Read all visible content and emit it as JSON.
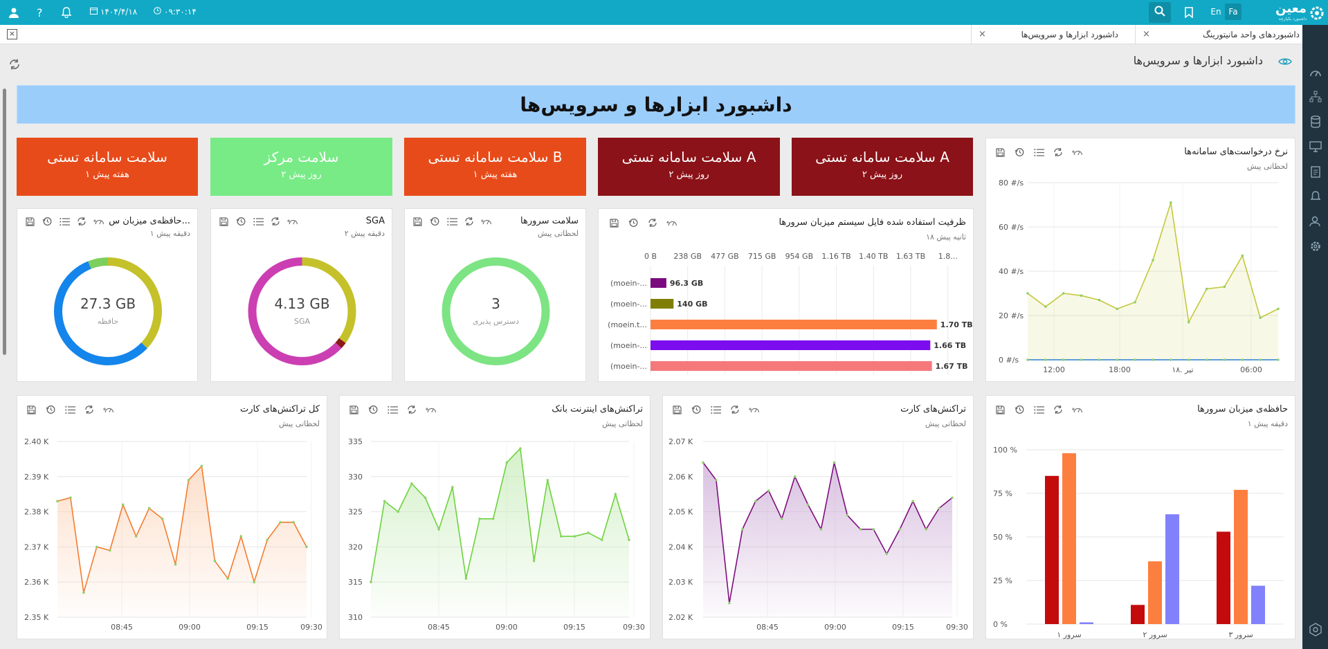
{
  "topbar": {
    "brand": "معین",
    "brand_sub": "داشبورد یکپارچه",
    "lang_en": "En",
    "lang_fa": "Fa",
    "date": "۱۴۰۴/۴/۱۸",
    "time": "۰۹:۳۰:۱۴",
    "icons": [
      "user-icon",
      "help-icon",
      "bell-icon",
      "calendar-icon",
      "clock-icon",
      "search-icon",
      "bookmark-icon"
    ]
  },
  "tabs": [
    {
      "label": "داشبوردهای واحد مانیتورینگ"
    },
    {
      "label": "داشبورد ابزارها و سرویس‌ها"
    }
  ],
  "page": {
    "title": "داشبورد ابزارها و سرویس‌ها",
    "banner": "داشبورد ابزارها و سرویس‌ها"
  },
  "status_cards": [
    {
      "title": "سلامت سامانه تستی A",
      "sub": "۲ روز پیش",
      "color": "#8b1218"
    },
    {
      "title": "سلامت سامانه تستی A",
      "sub": "۲ روز پیش",
      "color": "#8b1218"
    },
    {
      "title": "سلامت سامانه تستی B",
      "sub": "۱ هفته پیش",
      "color": "#e84b1a"
    },
    {
      "title": "سلامت مرکز",
      "sub": "۲ روز پیش",
      "color": "#78eb86"
    },
    {
      "title": "سلامت سامانه تستی",
      "sub": "۱ هفته پیش",
      "color": "#e84b1a"
    }
  ],
  "panels": {
    "requests": {
      "title": "نرخ درخواست‌های سامانه‌ها",
      "sub": "لحظاتی پیش"
    },
    "fs": {
      "title": "ظرفیت استفاده شده فایل سیستم میزبان سرورها",
      "sub": "۱۸ ثانیه پیش"
    },
    "health": {
      "title": "سلامت سرورها",
      "sub": "لحظاتی پیش",
      "value": "3",
      "label": "دسترس پذیری"
    },
    "sga": {
      "title": "SGA",
      "sub": "۲ دقیقه پیش",
      "value": "4.13 GB",
      "label": "SGA"
    },
    "memory": {
      "title": "حافظه‌ی میزبان س...",
      "sub": "۱ دقیقه پیش",
      "value": "27.3 GB",
      "label": "حافظه"
    },
    "srvmem": {
      "title": "حافظه‌ی میزبان سرورها",
      "sub": "۱ دقیقه پیش"
    },
    "card_tx": {
      "title": "تراکنش‌های کارت",
      "sub": "لحظاتی پیش"
    },
    "bank_tx": {
      "title": "تراکنش‌های اینترنت بانک",
      "sub": "لحظاتی پیش"
    },
    "total_tx": {
      "title": "کل تراکنش‌های کارت",
      "sub": "لحظاتی پیش"
    }
  },
  "chart_data": [
    {
      "type": "line",
      "name": "requests",
      "y_ticks": [
        "80 #/s",
        "60 #/s",
        "40 #/s",
        "20 #/s",
        "0 #/s"
      ],
      "ylim": [
        0,
        80
      ],
      "x_ticks": [
        "12:00",
        "18:00",
        "۱۸. تیر",
        "06:00"
      ],
      "series": [
        {
          "color": "#c3c93a",
          "values": [
            30,
            24,
            30,
            29,
            27,
            23,
            26,
            45,
            71,
            17,
            32,
            33,
            47,
            19,
            23
          ]
        },
        {
          "color": "#2a7fd4",
          "values": [
            0,
            0,
            0,
            0,
            0,
            0,
            0,
            0,
            0,
            0,
            0,
            0,
            0,
            0,
            0
          ]
        }
      ]
    },
    {
      "type": "bar",
      "name": "fs",
      "orientation": "horizontal",
      "x_ticks": [
        "0 B",
        "238 GB",
        "477 GB",
        "715 GB",
        "954 GB",
        "1.16 TB",
        "1.40 TB",
        "1.63 TB",
        "1.8..."
      ],
      "xmax_gb": 1900,
      "categories": [
        "(moein-...",
        "(moein-...",
        "(moein.t...",
        "(moein-...",
        "(moein-..."
      ],
      "values_gb": [
        96.3,
        140,
        1740,
        1700,
        1710
      ],
      "labels": [
        "96.3 GB",
        "140 GB",
        "1.70 TB",
        "1.66 TB",
        "1.67 TB"
      ],
      "colors": [
        "#7b0a7f",
        "#7f7f06",
        "#fd7f40",
        "#7c0dee",
        "#f5787b"
      ]
    },
    {
      "type": "pie",
      "name": "health",
      "slices": [
        {
          "value": 100,
          "color": "#7de483"
        }
      ]
    },
    {
      "type": "pie",
      "name": "sga",
      "slices": [
        {
          "value": 35,
          "color": "#c5c12a"
        },
        {
          "value": 2,
          "color": "#8b1a1a"
        },
        {
          "value": 63,
          "color": "#cb3fb2"
        }
      ]
    },
    {
      "type": "pie",
      "name": "memory",
      "slices": [
        {
          "value": 37,
          "color": "#c5c12a"
        },
        {
          "value": 57,
          "color": "#1485ea"
        },
        {
          "value": 6,
          "color": "#7ccf5d"
        }
      ]
    },
    {
      "type": "bar",
      "name": "srvmem",
      "categories": [
        "سرور ۱",
        "سرور ۲",
        "سرور ۳"
      ],
      "y_ticks": [
        "100 %",
        "75 %",
        "50 %",
        "25 %",
        "0 %"
      ],
      "ylim": [
        0,
        100
      ],
      "series": [
        {
          "color": "#c40b0b",
          "values": [
            85,
            11,
            53
          ]
        },
        {
          "color": "#fd7f40",
          "values": [
            98,
            36,
            77
          ]
        },
        {
          "color": "#8181fb",
          "values": [
            1,
            63,
            22
          ]
        }
      ]
    },
    {
      "type": "line",
      "name": "card_tx",
      "y_ticks": [
        "2.07 K",
        "2.06 K",
        "2.05 K",
        "2.04 K",
        "2.03 K",
        "2.02 K"
      ],
      "ylim": [
        2020,
        2070
      ],
      "x_ticks": [
        "08:45",
        "09:00",
        "09:15",
        "09:30"
      ],
      "series": [
        {
          "color": "#7d0e7c",
          "fill": "#c9a7d3",
          "values": [
            2064,
            2059,
            2024,
            2045,
            2053,
            2056,
            2048,
            2060,
            2052,
            2045,
            2064,
            2049,
            2045,
            2045,
            2038,
            2045,
            2053,
            2045,
            2051,
            2054
          ]
        }
      ]
    },
    {
      "type": "line",
      "name": "bank_tx",
      "y_ticks": [
        "335",
        "330",
        "325",
        "320",
        "315",
        "310"
      ],
      "ylim": [
        310,
        335
      ],
      "x_ticks": [
        "08:45",
        "09:00",
        "09:15",
        "09:30"
      ],
      "series": [
        {
          "color": "#6cd23c",
          "fill": "#c3ebb4",
          "values": [
            315,
            326.5,
            325,
            329,
            327,
            322.5,
            328.5,
            315.5,
            324,
            324,
            332,
            334,
            318,
            329.5,
            321.5,
            321.5,
            322,
            321,
            327.5,
            321
          ]
        }
      ]
    },
    {
      "type": "line",
      "name": "total_tx",
      "y_ticks": [
        "2.40 K",
        "2.39 K",
        "2.38 K",
        "2.37 K",
        "2.36 K",
        "2.35 K"
      ],
      "ylim": [
        2350,
        2400
      ],
      "x_ticks": [
        "08:45",
        "09:00",
        "09:15",
        "09:30"
      ],
      "series": [
        {
          "color": "#f47c2e",
          "fill": "#fbd2b6",
          "values": [
            2383,
            2384,
            2357,
            2370,
            2369,
            2382,
            2373,
            2381,
            2378,
            2365,
            2389,
            2393,
            2366,
            2361,
            2373,
            2360,
            2372,
            2377,
            2377,
            2370
          ]
        }
      ]
    }
  ]
}
